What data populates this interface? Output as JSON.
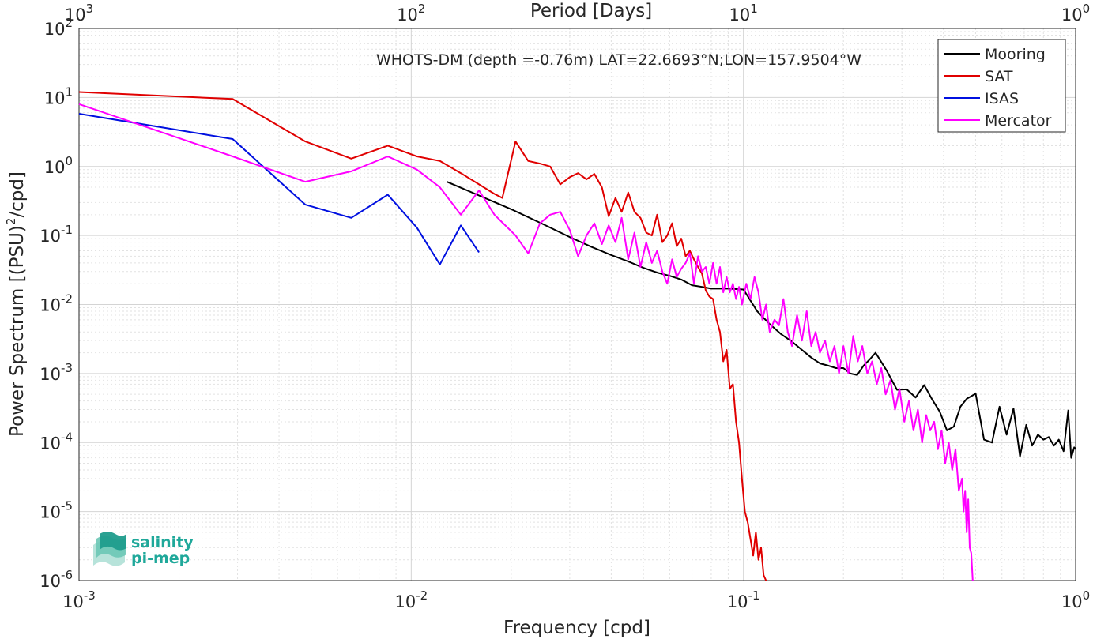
{
  "chart_data": {
    "type": "line",
    "title": "WHOTS-DM (depth =-0.76m) LAT=22.6693°N;LON=157.9504°W",
    "xlabel": "Frequency [cpd]",
    "ylabel_main": "Power Spectrum [(PSU)",
    "ylabel_sup": "2",
    "ylabel_tail": "/cpd]",
    "top_xlabel": "Period [Days]",
    "xscale": "log",
    "yscale": "log",
    "xlim": [
      0.001,
      1
    ],
    "ylim": [
      1e-06,
      100
    ],
    "grid": true,
    "minor_grid": true,
    "legend_position": "top-right",
    "x_ticks": [
      {
        "value": 0.001,
        "base": "10",
        "exp": "-3"
      },
      {
        "value": 0.01,
        "base": "10",
        "exp": "-2"
      },
      {
        "value": 0.1,
        "base": "10",
        "exp": "-1"
      },
      {
        "value": 1,
        "base": "10",
        "exp": "0"
      }
    ],
    "y_ticks": [
      {
        "value": 1e-06,
        "base": "10",
        "exp": "-6"
      },
      {
        "value": 1e-05,
        "base": "10",
        "exp": "-5"
      },
      {
        "value": 0.0001,
        "base": "10",
        "exp": "-4"
      },
      {
        "value": 0.001,
        "base": "10",
        "exp": "-3"
      },
      {
        "value": 0.01,
        "base": "10",
        "exp": "-2"
      },
      {
        "value": 0.1,
        "base": "10",
        "exp": "-1"
      },
      {
        "value": 1,
        "base": "10",
        "exp": "0"
      },
      {
        "value": 10,
        "base": "10",
        "exp": "1"
      },
      {
        "value": 100,
        "base": "10",
        "exp": "2"
      }
    ],
    "top_ticks": [
      {
        "at_frequency": 0.001,
        "base": "10",
        "exp": "3"
      },
      {
        "at_frequency": 0.01,
        "base": "10",
        "exp": "2"
      },
      {
        "at_frequency": 0.1,
        "base": "10",
        "exp": "1"
      },
      {
        "at_frequency": 1,
        "base": "10",
        "exp": "0"
      }
    ],
    "series": [
      {
        "name": "Mooring",
        "color": "#000000",
        "x": [
          0.0128,
          0.016,
          0.02,
          0.025,
          0.03,
          0.035,
          0.04,
          0.045,
          0.05,
          0.055,
          0.06,
          0.065,
          0.07,
          0.075,
          0.08,
          0.09,
          0.1,
          0.11,
          0.12,
          0.13,
          0.14,
          0.15,
          0.16,
          0.17,
          0.18,
          0.19,
          0.2,
          0.21,
          0.22,
          0.23,
          0.24,
          0.25,
          0.27,
          0.29,
          0.31,
          0.33,
          0.35,
          0.37,
          0.39,
          0.41,
          0.43,
          0.45,
          0.47,
          0.5,
          0.53,
          0.56,
          0.59,
          0.62,
          0.65,
          0.68,
          0.71,
          0.74,
          0.77,
          0.8,
          0.83,
          0.86,
          0.89,
          0.92,
          0.95,
          0.97,
          0.99,
          1.0
        ],
        "y": [
          0.6,
          0.38,
          0.24,
          0.145,
          0.095,
          0.068,
          0.052,
          0.042,
          0.034,
          0.029,
          0.026,
          0.023,
          0.019,
          0.018,
          0.017,
          0.017,
          0.0165,
          0.008,
          0.0052,
          0.0037,
          0.0029,
          0.0022,
          0.0017,
          0.0014,
          0.0013,
          0.0012,
          0.0012,
          0.001,
          0.00095,
          0.0013,
          0.0016,
          0.002,
          0.0011,
          0.00058,
          0.00059,
          0.00045,
          0.00068,
          0.00042,
          0.00028,
          0.00015,
          0.00017,
          0.00033,
          0.00043,
          0.00051,
          0.00011,
          0.0001,
          0.00033,
          0.00013,
          0.00031,
          6.3e-05,
          0.00018,
          9e-05,
          0.00013,
          0.00011,
          0.00012,
          9e-05,
          0.00011,
          7.5e-05,
          0.00029,
          6e-05,
          8.5e-05,
          8e-05
        ]
      },
      {
        "name": "SAT",
        "color": "#e00000",
        "x": [
          0.001,
          0.0029,
          0.0048,
          0.0066,
          0.0085,
          0.0104,
          0.0122,
          0.0141,
          0.016,
          0.0178,
          0.0188,
          0.0206,
          0.0225,
          0.0244,
          0.0262,
          0.0281,
          0.03,
          0.0318,
          0.0337,
          0.0356,
          0.0375,
          0.0393,
          0.0412,
          0.043,
          0.045,
          0.047,
          0.049,
          0.051,
          0.053,
          0.055,
          0.057,
          0.059,
          0.061,
          0.063,
          0.065,
          0.067,
          0.069,
          0.071,
          0.073,
          0.075,
          0.077,
          0.079,
          0.081,
          0.083,
          0.085,
          0.087,
          0.089,
          0.091,
          0.093,
          0.095,
          0.097,
          0.099,
          0.101,
          0.103,
          0.105,
          0.107,
          0.109,
          0.111,
          0.113,
          0.115,
          0.117
        ],
        "y": [
          12,
          9.5,
          2.3,
          1.3,
          2.0,
          1.4,
          1.2,
          0.8,
          0.55,
          0.4,
          0.35,
          2.3,
          1.2,
          1.1,
          1.0,
          0.55,
          0.7,
          0.8,
          0.65,
          0.78,
          0.5,
          0.19,
          0.35,
          0.22,
          0.42,
          0.22,
          0.18,
          0.11,
          0.1,
          0.2,
          0.08,
          0.1,
          0.15,
          0.07,
          0.09,
          0.05,
          0.06,
          0.045,
          0.035,
          0.028,
          0.016,
          0.013,
          0.012,
          0.006,
          0.004,
          0.0015,
          0.0022,
          0.0006,
          0.0007,
          0.0002,
          0.0001,
          3e-05,
          1e-05,
          7e-06,
          4e-06,
          2.3e-06,
          5e-06,
          2e-06,
          3e-06,
          1.2e-06,
          1e-06
        ]
      },
      {
        "name": "ISAS",
        "color": "#0010e0",
        "x": [
          0.001,
          0.0029,
          0.0048,
          0.0066,
          0.0085,
          0.0104,
          0.0122,
          0.0141,
          0.016
        ],
        "y": [
          5.8,
          2.5,
          0.28,
          0.18,
          0.39,
          0.13,
          0.038,
          0.14,
          0.057
        ]
      },
      {
        "name": "Mercator",
        "color": "#ff00ff",
        "x": [
          0.001,
          0.0029,
          0.0048,
          0.0066,
          0.0085,
          0.0104,
          0.0122,
          0.0141,
          0.016,
          0.0178,
          0.0206,
          0.0225,
          0.0244,
          0.0262,
          0.0281,
          0.03,
          0.0318,
          0.0337,
          0.0356,
          0.0375,
          0.0393,
          0.0412,
          0.043,
          0.045,
          0.047,
          0.049,
          0.051,
          0.053,
          0.055,
          0.057,
          0.059,
          0.061,
          0.063,
          0.065,
          0.067,
          0.069,
          0.071,
          0.073,
          0.075,
          0.077,
          0.079,
          0.081,
          0.083,
          0.085,
          0.087,
          0.089,
          0.091,
          0.093,
          0.095,
          0.097,
          0.099,
          0.102,
          0.105,
          0.108,
          0.111,
          0.114,
          0.117,
          0.12,
          0.124,
          0.128,
          0.132,
          0.136,
          0.14,
          0.145,
          0.15,
          0.155,
          0.16,
          0.165,
          0.17,
          0.176,
          0.182,
          0.188,
          0.194,
          0.2,
          0.207,
          0.214,
          0.221,
          0.228,
          0.236,
          0.244,
          0.252,
          0.26,
          0.268,
          0.277,
          0.286,
          0.295,
          0.305,
          0.315,
          0.325,
          0.335,
          0.345,
          0.355,
          0.365,
          0.375,
          0.385,
          0.395,
          0.405,
          0.415,
          0.425,
          0.435,
          0.445,
          0.455,
          0.46,
          0.465,
          0.47,
          0.475,
          0.48,
          0.485,
          0.49
        ],
        "y": [
          8.0,
          1.4,
          0.6,
          0.85,
          1.4,
          0.9,
          0.5,
          0.2,
          0.45,
          0.2,
          0.1,
          0.055,
          0.15,
          0.2,
          0.22,
          0.12,
          0.05,
          0.1,
          0.15,
          0.075,
          0.14,
          0.08,
          0.18,
          0.045,
          0.11,
          0.035,
          0.08,
          0.04,
          0.06,
          0.03,
          0.02,
          0.045,
          0.025,
          0.033,
          0.04,
          0.055,
          0.02,
          0.05,
          0.03,
          0.035,
          0.02,
          0.04,
          0.02,
          0.035,
          0.015,
          0.025,
          0.015,
          0.02,
          0.012,
          0.018,
          0.01,
          0.02,
          0.012,
          0.025,
          0.015,
          0.006,
          0.01,
          0.004,
          0.006,
          0.005,
          0.012,
          0.004,
          0.0025,
          0.007,
          0.003,
          0.008,
          0.0025,
          0.004,
          0.002,
          0.003,
          0.0015,
          0.0025,
          0.001,
          0.0025,
          0.001,
          0.0035,
          0.0015,
          0.0025,
          0.001,
          0.0015,
          0.0007,
          0.0012,
          0.0005,
          0.0008,
          0.0003,
          0.0006,
          0.0002,
          0.0004,
          0.00015,
          0.0003,
          0.0001,
          0.00025,
          0.00015,
          0.0002,
          8e-05,
          0.00015,
          5e-05,
          0.0001,
          4e-05,
          8e-05,
          2e-05,
          3e-05,
          1e-05,
          2e-05,
          5e-06,
          1.5e-05,
          3e-06,
          2.5e-06,
          1e-06
        ]
      }
    ],
    "legend": [
      "Mooring",
      "SAT",
      "ISAS",
      "Mercator"
    ],
    "annotations": {
      "logo_line1": "salinity",
      "logo_line2": "pi-mep"
    }
  }
}
